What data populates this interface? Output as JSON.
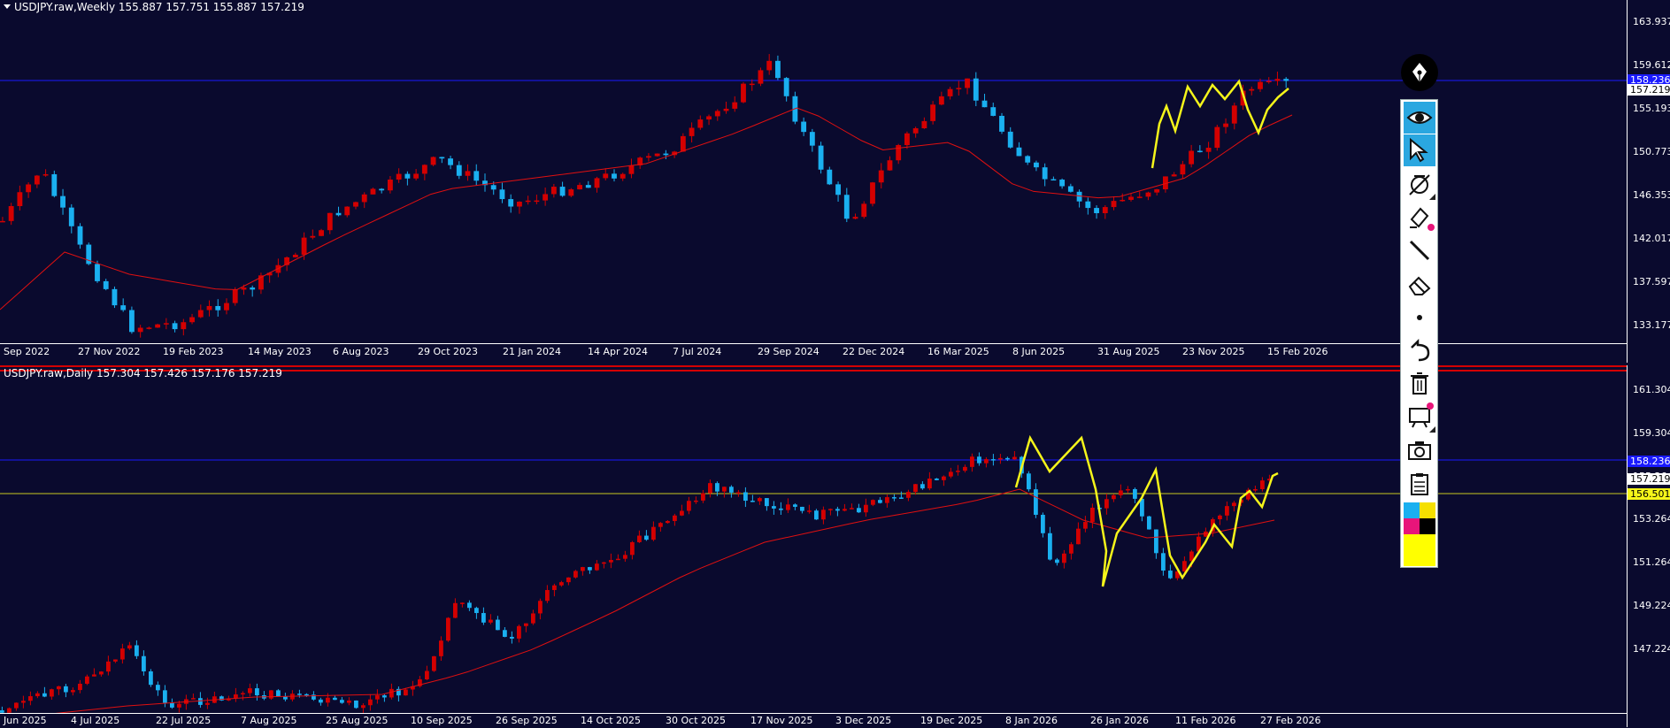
{
  "colors": {
    "background": "#0a0a2e",
    "bull_candle": "#d40000",
    "bear_candle": "#1ab0f0",
    "moving_average": "#e01010",
    "zigzag": "#f5f51a",
    "blue_level": "#1a1aff",
    "yellow_level": "#c8c820",
    "toolbar_active": "#2aa7e0"
  },
  "top_chart": {
    "title": "USDJPY.raw,Weekly  155.887 157.751 155.887 157.219",
    "price_ticks": [
      "163.937",
      "159.612",
      "155.193",
      "150.773",
      "146.353",
      "142.017",
      "137.597",
      "133.177"
    ],
    "blue_level_label": "158.236",
    "current_price_label": "157.219",
    "time_ticks": [
      "Sep 2022",
      "27 Nov 2022",
      "19 Feb 2023",
      "14 May 2023",
      "6 Aug 2023",
      "29 Oct 2023",
      "21 Jan 2024",
      "14 Apr 2024",
      "7 Jul 2024",
      "29 Sep 2024",
      "22 Dec 2024",
      "16 Mar 2025",
      "8 Jun 2025",
      "31 Aug 2025",
      "23 Nov 2025",
      "15 Feb 2026"
    ]
  },
  "bottom_chart": {
    "title": "USDJPY.raw,Daily  157.304 157.426 157.176 157.219",
    "price_ticks": [
      "161.304",
      "159.304",
      "155.264",
      "153.264",
      "151.264",
      "149.224",
      "147.224"
    ],
    "blue_level_label": "158.236",
    "current_price_label": "157.219",
    "yellow_level_label": "156.501",
    "time_ticks": [
      "Jun 2025",
      "4 Jul 2025",
      "22 Jul 2025",
      "7 Aug 2025",
      "25 Aug 2025",
      "10 Sep 2025",
      "26 Sep 2025",
      "14 Oct 2025",
      "30 Oct 2025",
      "17 Nov 2025",
      "3 Dec 2025",
      "19 Dec 2025",
      "8 Jan 2026",
      "26 Jan 2026",
      "11 Feb 2026",
      "27 Feb 2026"
    ]
  },
  "toolbar": {
    "tools": [
      "pen-tool",
      "visibility-eye",
      "select-cursor",
      "hide-drawings",
      "highlighter",
      "line-tool",
      "eraser",
      "brush-size-dot",
      "undo",
      "delete-all",
      "screen-capture",
      "camera",
      "clipboard"
    ],
    "swatches": [
      "#1ab0f0",
      "#f5e000",
      "#e8157a",
      "#000000",
      "#ffff00"
    ]
  }
}
